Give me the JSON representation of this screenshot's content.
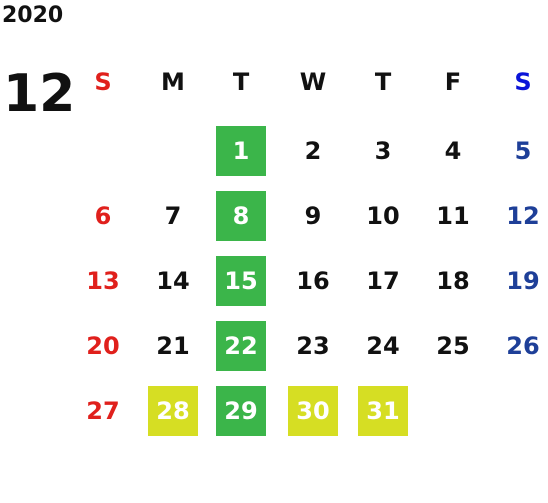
{
  "year": "2020",
  "month": "12",
  "weekdays": [
    "S",
    "M",
    "T",
    "W",
    "T",
    "F",
    "S"
  ],
  "weekday_colors": [
    "#e0201c",
    "#111111",
    "#111111",
    "#111111",
    "#111111",
    "#111111",
    "#0a14d8"
  ],
  "day_colors": [
    "#e0201c",
    "#111111",
    "#111111",
    "#111111",
    "#111111",
    "#111111",
    "#1e3f98"
  ],
  "highlight_text_color": "#ffffff",
  "weeks": [
    [
      null,
      null,
      {
        "text": "1",
        "bg": "#3bb54a"
      },
      {
        "text": "2"
      },
      {
        "text": "3"
      },
      {
        "text": "4"
      },
      {
        "text": "5"
      }
    ],
    [
      {
        "text": "6"
      },
      {
        "text": "7"
      },
      {
        "text": "8",
        "bg": "#3bb54a"
      },
      {
        "text": "9"
      },
      {
        "text": "10"
      },
      {
        "text": "11"
      },
      {
        "text": "12"
      }
    ],
    [
      {
        "text": "13"
      },
      {
        "text": "14"
      },
      {
        "text": "15",
        "bg": "#3bb54a"
      },
      {
        "text": "16"
      },
      {
        "text": "17"
      },
      {
        "text": "18"
      },
      {
        "text": "19"
      }
    ],
    [
      {
        "text": "20"
      },
      {
        "text": "21"
      },
      {
        "text": "22",
        "bg": "#3bb54a"
      },
      {
        "text": "23"
      },
      {
        "text": "24"
      },
      {
        "text": "25"
      },
      {
        "text": "26"
      }
    ],
    [
      {
        "text": "27"
      },
      {
        "text": "28",
        "bg": "#d6de23"
      },
      {
        "text": "29",
        "bg": "#3bb54a"
      },
      {
        "text": "30",
        "bg": "#d6de23"
      },
      {
        "text": "31",
        "bg": "#d6de23"
      },
      null,
      null
    ]
  ]
}
